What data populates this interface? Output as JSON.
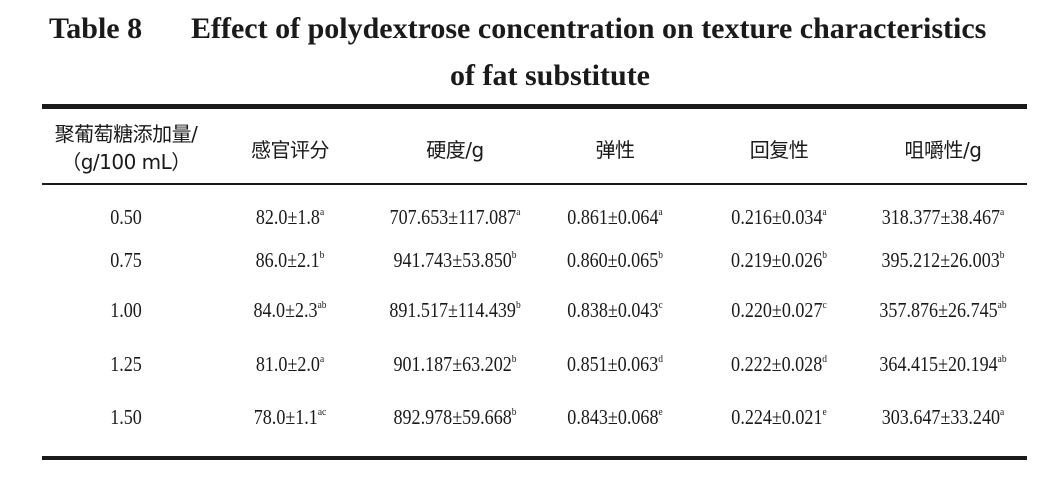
{
  "caption": {
    "number": "Table 8",
    "title_line1": "Effect of polydextrose concentration on texture characteristics",
    "title_line2": "of fat substitute"
  },
  "headers": [
    {
      "line1": "聚葡萄糖添加量/",
      "line2": "（g/100 mL）"
    },
    {
      "line1": "感官评分"
    },
    {
      "line1": "硬度/g"
    },
    {
      "line1": "弹性"
    },
    {
      "line1": "回复性"
    },
    {
      "line1": "咀嚼性/g"
    }
  ],
  "rows": [
    {
      "concentration": "0.50",
      "cells": [
        {
          "value": "82.0±1.8",
          "sig": "a"
        },
        {
          "value": "707.653±117.087",
          "sig": "a"
        },
        {
          "value": "0.861±0.064",
          "sig": "a"
        },
        {
          "value": "0.216±0.034",
          "sig": "a"
        },
        {
          "value": "318.377±38.467",
          "sig": "a"
        }
      ]
    },
    {
      "concentration": "0.75",
      "cells": [
        {
          "value": "86.0±2.1",
          "sig": "b"
        },
        {
          "value": "941.743±53.850",
          "sig": "b"
        },
        {
          "value": "0.860±0.065",
          "sig": "b"
        },
        {
          "value": "0.219±0.026",
          "sig": "b"
        },
        {
          "value": "395.212±26.003",
          "sig": "b"
        }
      ]
    },
    {
      "concentration": "1.00",
      "cells": [
        {
          "value": "84.0±2.3",
          "sig": "ab"
        },
        {
          "value": "891.517±114.439",
          "sig": "b"
        },
        {
          "value": "0.838±0.043",
          "sig": "c"
        },
        {
          "value": "0.220±0.027",
          "sig": "c"
        },
        {
          "value": "357.876±26.745",
          "sig": "ab"
        }
      ]
    },
    {
      "concentration": "1.25",
      "cells": [
        {
          "value": "81.0±2.0",
          "sig": "a"
        },
        {
          "value": "901.187±63.202",
          "sig": "b"
        },
        {
          "value": "0.851±0.063",
          "sig": "d"
        },
        {
          "value": "0.222±0.028",
          "sig": "d"
        },
        {
          "value": "364.415±20.194",
          "sig": "ab"
        }
      ]
    },
    {
      "concentration": "1.50",
      "cells": [
        {
          "value": "78.0±1.1",
          "sig": "ac"
        },
        {
          "value": "892.978±59.668",
          "sig": "b"
        },
        {
          "value": "0.843±0.068",
          "sig": "e"
        },
        {
          "value": "0.224±0.021",
          "sig": "e"
        },
        {
          "value": "303.647±33.240",
          "sig": "a"
        }
      ]
    }
  ]
}
